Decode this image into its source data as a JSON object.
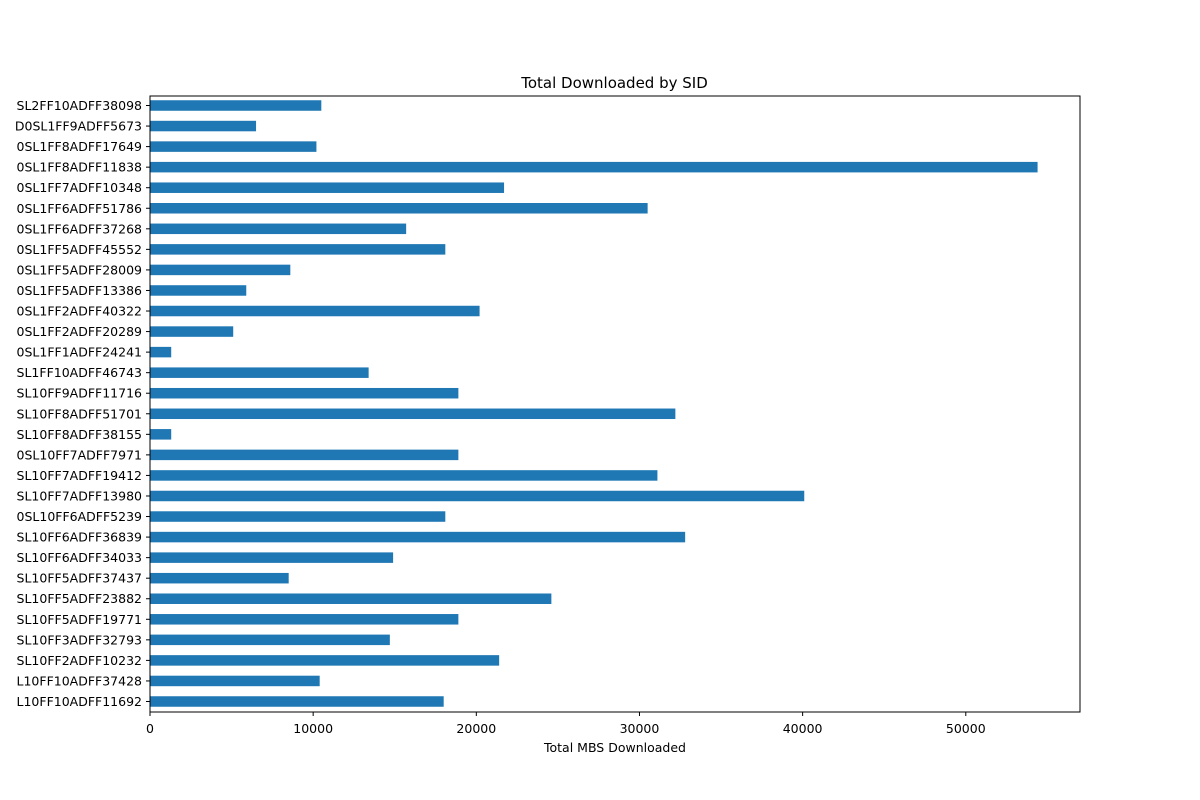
{
  "chart_data": {
    "type": "bar",
    "orientation": "horizontal",
    "title": "Total Downloaded by SID",
    "xlabel": "Total MBS Downloaded",
    "ylabel": "",
    "xlim": [
      0,
      57000
    ],
    "xticks": [
      0,
      10000,
      20000,
      30000,
      40000,
      50000
    ],
    "grid": false,
    "bar_color": "#1f77b4",
    "categories": [
      "L10FF10ADFF11692",
      "L10FF10ADFF37428",
      "SL10FF2ADFF10232",
      "SL10FF3ADFF32793",
      "SL10FF5ADFF19771",
      "SL10FF5ADFF23882",
      "SL10FF5ADFF37437",
      "SL10FF6ADFF34033",
      "SL10FF6ADFF36839",
      "0SL10FF6ADFF5239",
      "SL10FF7ADFF13980",
      "SL10FF7ADFF19412",
      "0SL10FF7ADFF7971",
      "SL10FF8ADFF38155",
      "SL10FF8ADFF51701",
      "SL10FF9ADFF11716",
      "SL1FF10ADFF46743",
      "0SL1FF1ADFF24241",
      "0SL1FF2ADFF20289",
      "0SL1FF2ADFF40322",
      "0SL1FF5ADFF13386",
      "0SL1FF5ADFF28009",
      "0SL1FF5ADFF45552",
      "0SL1FF6ADFF37268",
      "0SL1FF6ADFF51786",
      "0SL1FF7ADFF10348",
      "0SL1FF8ADFF11838",
      "0SL1FF8ADFF17649",
      "D0SL1FF9ADFF5673",
      "SL2FF10ADFF38098"
    ],
    "values": [
      18000,
      10400,
      21400,
      14700,
      18900,
      24600,
      8500,
      14900,
      32800,
      18100,
      40100,
      31100,
      18900,
      1300,
      32200,
      18900,
      13400,
      1300,
      5100,
      20200,
      5900,
      8600,
      18100,
      15700,
      30500,
      21700,
      54400,
      10200,
      6500,
      10500
    ]
  }
}
